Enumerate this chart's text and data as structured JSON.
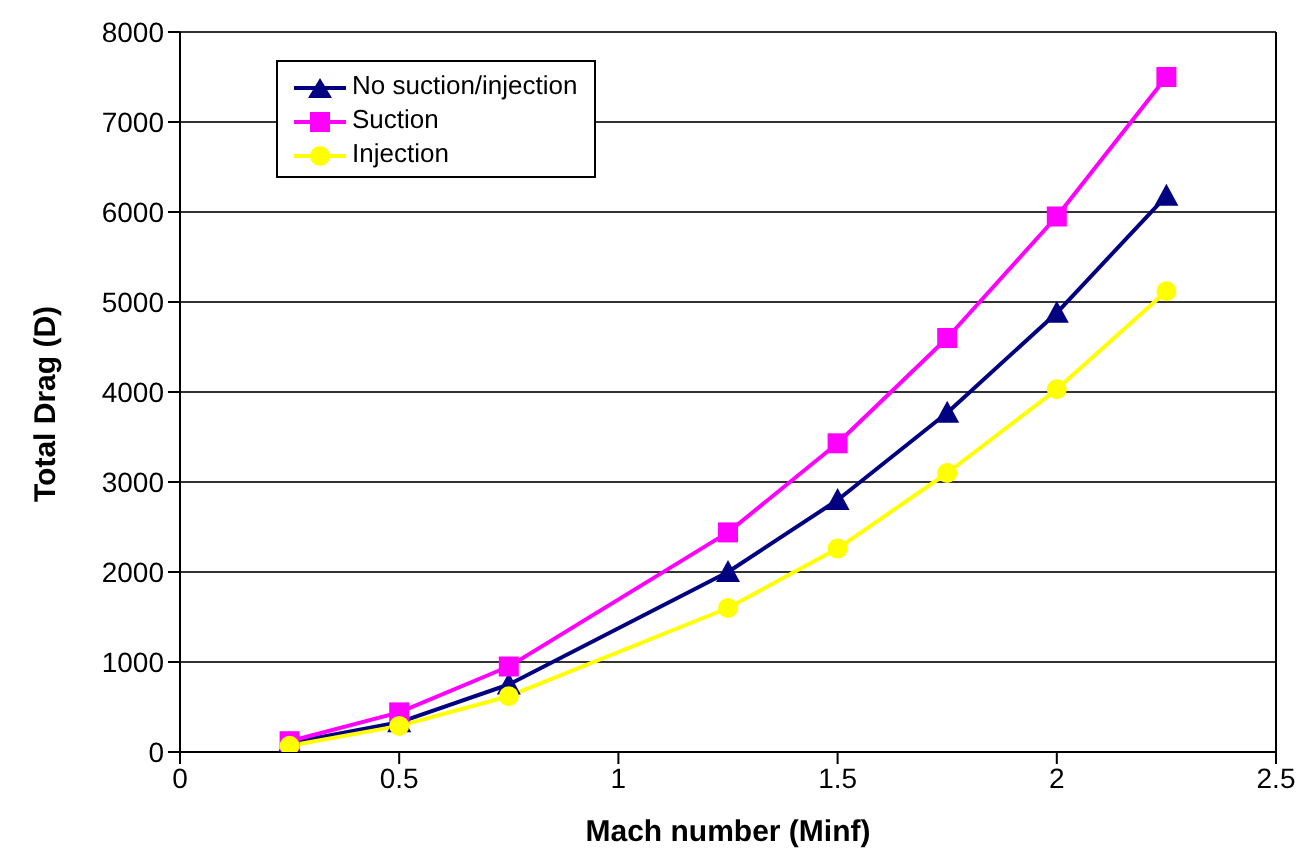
{
  "chart_data": {
    "type": "line",
    "xlabel": "Mach number (Minf)",
    "ylabel": "Total Drag (D)",
    "x": [
      0.25,
      0.5,
      0.75,
      1.25,
      1.5,
      1.75,
      2,
      2.25
    ],
    "series": [
      {
        "name": "No suction/injection",
        "color": "#000080",
        "marker": "triangle",
        "values": [
          100,
          330,
          750,
          2000,
          2800,
          3770,
          4880,
          6180
        ]
      },
      {
        "name": "Suction",
        "color": "#ff00ff",
        "marker": "square",
        "values": [
          120,
          440,
          950,
          2440,
          3430,
          4600,
          5950,
          7500
        ]
      },
      {
        "name": "Injection",
        "color": "#ffff00",
        "marker": "circle",
        "values": [
          70,
          290,
          620,
          1600,
          2260,
          3100,
          4030,
          5120
        ]
      }
    ],
    "xlim": [
      0,
      2.5
    ],
    "xticks": [
      0,
      0.5,
      1,
      1.5,
      2,
      2.5
    ],
    "ylim": [
      0,
      8000
    ],
    "yticks": [
      0,
      1000,
      2000,
      3000,
      4000,
      5000,
      6000,
      7000,
      8000
    ],
    "grid": "y",
    "legend": "top left"
  }
}
